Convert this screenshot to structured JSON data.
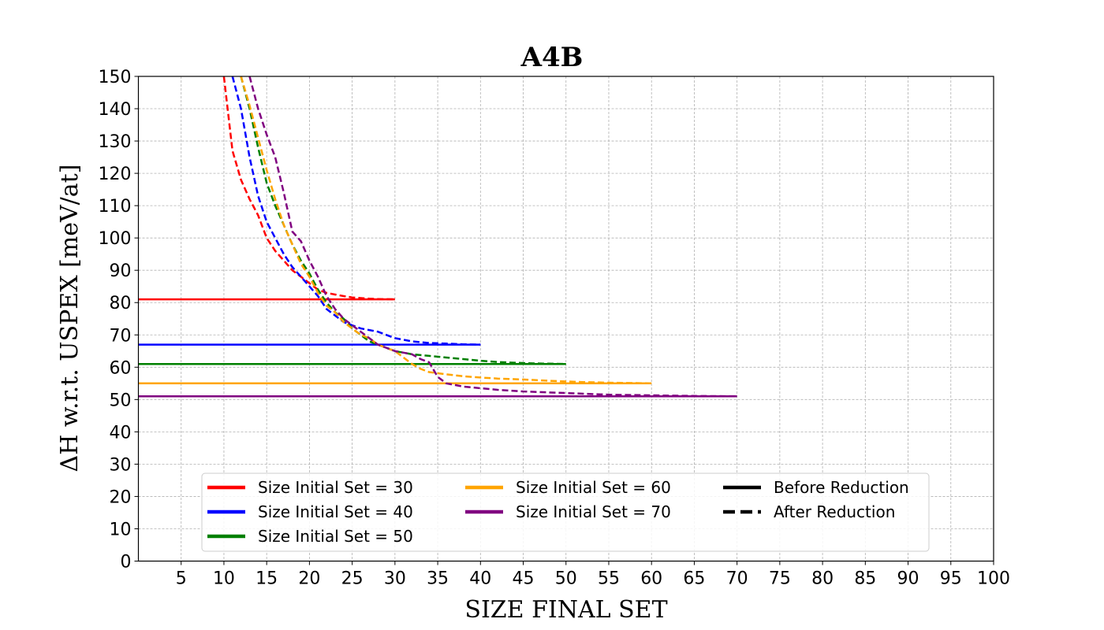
{
  "chart_data": {
    "type": "line",
    "title": "A4B",
    "xlabel": "SIZE FINAL SET",
    "ylabel": "ΔH w.r.t. USPEX [meV/at]",
    "xlim": [
      0,
      100
    ],
    "ylim": [
      0,
      150
    ],
    "xticks": [
      5,
      10,
      15,
      20,
      25,
      30,
      35,
      40,
      45,
      50,
      55,
      60,
      65,
      70,
      75,
      80,
      85,
      90,
      95,
      100
    ],
    "yticks": [
      0,
      10,
      20,
      30,
      40,
      50,
      60,
      70,
      80,
      90,
      100,
      110,
      120,
      130,
      140,
      150
    ],
    "grid": true,
    "legend_position": "lower-center",
    "series": [
      {
        "name": "Size Initial Set = 30",
        "color": "#ff0000",
        "style": "solid",
        "x": [
          0,
          30
        ],
        "y": [
          81,
          81
        ]
      },
      {
        "name": "Size Initial Set = 40",
        "color": "#0000ff",
        "style": "solid",
        "x": [
          0,
          40
        ],
        "y": [
          67,
          67
        ]
      },
      {
        "name": "Size Initial Set = 50",
        "color": "#008000",
        "style": "solid",
        "x": [
          0,
          50
        ],
        "y": [
          61,
          61
        ]
      },
      {
        "name": "Size Initial Set = 60",
        "color": "#ffa500",
        "style": "solid",
        "x": [
          0,
          60
        ],
        "y": [
          55,
          55
        ]
      },
      {
        "name": "Size Initial Set = 70",
        "color": "#800080",
        "style": "solid",
        "x": [
          0,
          70
        ],
        "y": [
          51,
          51
        ]
      },
      {
        "name": "Size Initial Set = 30",
        "color": "#ff0000",
        "style": "dashed",
        "x": [
          10,
          11,
          12,
          13,
          14,
          15,
          16,
          17,
          18,
          19,
          20,
          21,
          22,
          23,
          24,
          25,
          26,
          27,
          28,
          29,
          30
        ],
        "y": [
          150,
          127,
          118,
          112,
          107,
          100,
          96,
          93,
          90,
          88,
          86,
          84,
          83,
          82.5,
          82,
          81.6,
          81.4,
          81.2,
          81.1,
          81.05,
          81
        ]
      },
      {
        "name": "Size Initial Set = 40",
        "color": "#0000ff",
        "style": "dashed",
        "x": [
          11,
          12,
          13,
          14,
          15,
          16,
          17,
          18,
          19,
          20,
          21,
          22,
          23,
          24,
          25,
          26,
          27,
          28,
          29,
          30,
          31,
          32,
          34,
          36,
          38,
          40
        ],
        "y": [
          150,
          140,
          125,
          113,
          105,
          100,
          95,
          91,
          88,
          85,
          82,
          78,
          76,
          74,
          73,
          72,
          71.5,
          71,
          70,
          69,
          68.5,
          68,
          67.5,
          67.3,
          67.1,
          67
        ]
      },
      {
        "name": "Size Initial Set = 50",
        "color": "#008000",
        "style": "dashed",
        "x": [
          12,
          13,
          14,
          15,
          16,
          17,
          18,
          19,
          20,
          21,
          22,
          23,
          24,
          25,
          26,
          27,
          28,
          29,
          30,
          32,
          34,
          36,
          38,
          40,
          42,
          44,
          46,
          48,
          50
        ],
        "y": [
          150,
          140,
          128,
          117,
          110,
          104,
          98,
          93,
          89,
          84,
          80,
          77,
          75,
          72,
          70,
          68,
          67,
          66,
          65,
          64,
          63.5,
          63,
          62.5,
          62,
          61.6,
          61.4,
          61.2,
          61.1,
          61
        ]
      },
      {
        "name": "Size Initial Set = 60",
        "color": "#ffa500",
        "style": "dashed",
        "x": [
          12,
          13,
          14,
          15,
          16,
          17,
          18,
          19,
          20,
          21,
          22,
          23,
          24,
          25,
          26,
          27,
          28,
          29,
          30,
          31,
          32,
          33,
          34,
          36,
          38,
          40,
          42,
          45,
          48,
          50,
          52,
          55,
          58,
          60
        ],
        "y": [
          150,
          141,
          131,
          121,
          112,
          104,
          98,
          92,
          88,
          83,
          79,
          77,
          74,
          72,
          70,
          69,
          67,
          66,
          65,
          63,
          61,
          59.5,
          58.5,
          57.8,
          57.2,
          56.8,
          56.5,
          56.2,
          55.8,
          55.6,
          55.4,
          55.2,
          55.1,
          55
        ]
      },
      {
        "name": "Size Initial Set = 70",
        "color": "#800080",
        "style": "dashed",
        "x": [
          13,
          14,
          15,
          16,
          17,
          18,
          19,
          20,
          21,
          22,
          23,
          24,
          25,
          26,
          27,
          28,
          29,
          30,
          31,
          32,
          33,
          34,
          35,
          36,
          38,
          40,
          42,
          45,
          50,
          55,
          60,
          65,
          70
        ],
        "y": [
          150,
          140,
          132,
          125,
          114,
          102,
          99,
          93,
          88,
          82,
          78,
          75,
          73,
          71,
          69,
          67,
          66,
          65,
          64.5,
          64,
          62.5,
          61.5,
          57,
          55,
          54,
          53.5,
          53,
          52.5,
          52,
          51.5,
          51.3,
          51.1,
          51
        ]
      }
    ],
    "legend": [
      {
        "label": "Size Initial Set = 30",
        "color": "#ff0000",
        "style": "solid"
      },
      {
        "label": "Size Initial Set = 40",
        "color": "#0000ff",
        "style": "solid"
      },
      {
        "label": "Size Initial Set = 50",
        "color": "#008000",
        "style": "solid"
      },
      {
        "label": "Size Initial Set = 60",
        "color": "#ffa500",
        "style": "solid"
      },
      {
        "label": "Size Initial Set = 70",
        "color": "#800080",
        "style": "solid"
      },
      {
        "label": "Before Reduction",
        "color": "#000000",
        "style": "solid"
      },
      {
        "label": "After Reduction",
        "color": "#000000",
        "style": "dashed"
      }
    ]
  }
}
